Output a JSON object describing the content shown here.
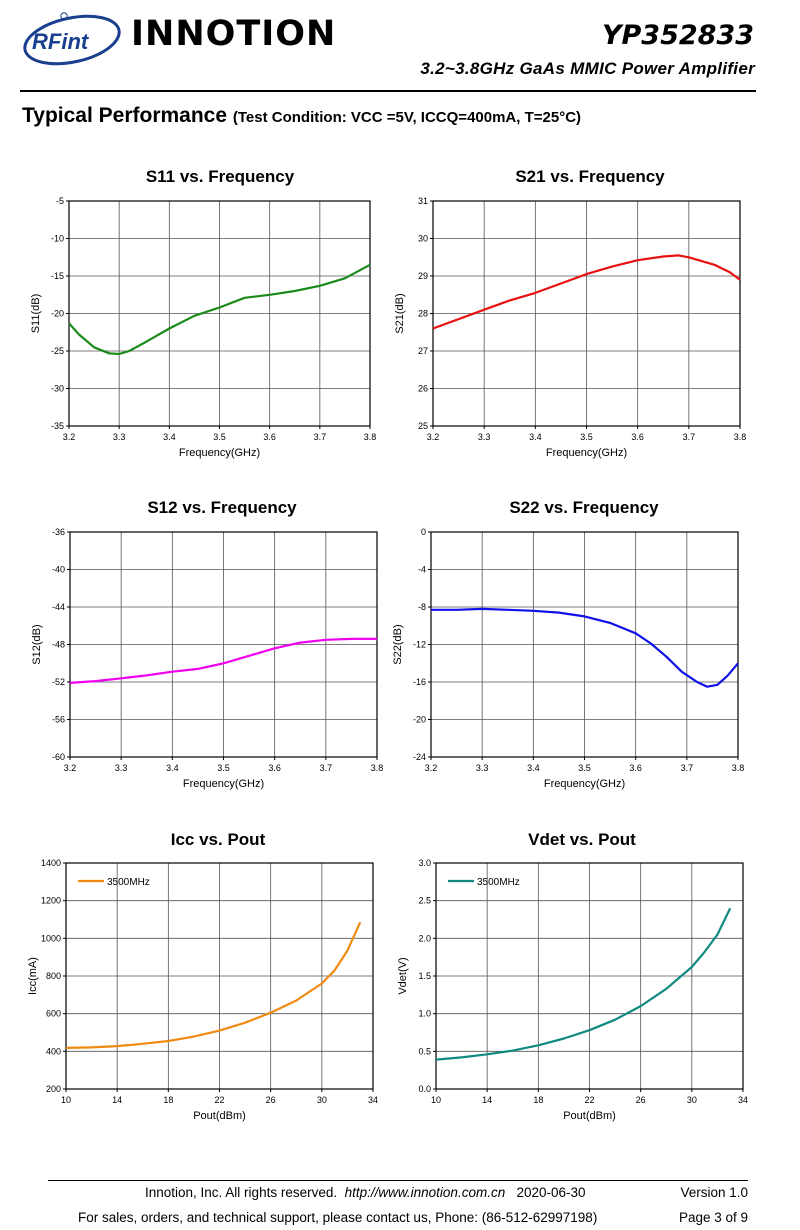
{
  "header": {
    "logo_text": "RFint",
    "company": "INNOTION",
    "part_number": "YP352833",
    "subtitle": "3.2~3.8GHz GaAs MMIC Power Amplifier"
  },
  "section": {
    "title": "Typical Performance",
    "condition": "(Test Condition: VCC =5V, ICCQ=400mA, T=25°C)"
  },
  "colors": {
    "s11": "#1a8a1a",
    "s21": "#e81010",
    "s12": "#f000f0",
    "s22": "#1010e8",
    "icc": "#f08a10",
    "vdet": "#108a80"
  },
  "chart_data": [
    {
      "type": "line",
      "title": "S11 vs. Frequency",
      "xlabel": "Frequency(GHz)",
      "ylabel": "S11(dB)",
      "xlim": [
        3.2,
        3.8
      ],
      "ylim": [
        -35,
        -5
      ],
      "xticks": [
        "3.2",
        "3.3",
        "3.4",
        "3.5",
        "3.6",
        "3.7",
        "3.8"
      ],
      "yticks": [
        "-5",
        "-10",
        "-15",
        "-20",
        "-25",
        "-30",
        "-35"
      ],
      "x": [
        3.2,
        3.22,
        3.25,
        3.28,
        3.3,
        3.32,
        3.35,
        3.4,
        3.45,
        3.5,
        3.55,
        3.6,
        3.65,
        3.7,
        3.75,
        3.8
      ],
      "y": [
        -21.3,
        -22.8,
        -24.5,
        -25.3,
        -25.4,
        -25.0,
        -23.9,
        -22.0,
        -20.3,
        -19.2,
        -17.9,
        -17.5,
        -17.0,
        -16.3,
        -15.3,
        -13.5
      ]
    },
    {
      "type": "line",
      "title": "S21 vs. Frequency",
      "xlabel": "Frequency(GHz)",
      "ylabel": "S21(dB)",
      "xlim": [
        3.2,
        3.8
      ],
      "ylim": [
        25,
        31
      ],
      "xticks": [
        "3.2",
        "3.3",
        "3.4",
        "3.5",
        "3.6",
        "3.7",
        "3.8"
      ],
      "yticks": [
        "31",
        "30",
        "29",
        "28",
        "27",
        "26",
        "25"
      ],
      "x": [
        3.2,
        3.25,
        3.3,
        3.35,
        3.4,
        3.45,
        3.5,
        3.55,
        3.6,
        3.65,
        3.68,
        3.7,
        3.75,
        3.78,
        3.8
      ],
      "y": [
        27.6,
        27.85,
        28.1,
        28.35,
        28.55,
        28.8,
        29.05,
        29.25,
        29.42,
        29.52,
        29.55,
        29.5,
        29.3,
        29.1,
        28.9
      ]
    },
    {
      "type": "line",
      "title": "S12 vs. Frequency",
      "xlabel": "Frequency(GHz)",
      "ylabel": "S12(dB)",
      "xlim": [
        3.2,
        3.8
      ],
      "ylim": [
        -60,
        -36
      ],
      "xticks": [
        "3.2",
        "3.3",
        "3.4",
        "3.5",
        "3.6",
        "3.7",
        "3.8"
      ],
      "yticks": [
        "-36",
        "-40",
        "-44",
        "-48",
        "-52",
        "-56",
        "-60"
      ],
      "x": [
        3.2,
        3.25,
        3.3,
        3.35,
        3.4,
        3.45,
        3.5,
        3.55,
        3.6,
        3.65,
        3.7,
        3.75,
        3.8
      ],
      "y": [
        -52.1,
        -51.9,
        -51.6,
        -51.3,
        -50.9,
        -50.6,
        -50.0,
        -49.2,
        -48.4,
        -47.8,
        -47.5,
        -47.4,
        -47.4
      ]
    },
    {
      "type": "line",
      "title": "S22 vs. Frequency",
      "xlabel": "Frequency(GHz)",
      "ylabel": "S22(dB)",
      "xlim": [
        3.2,
        3.8
      ],
      "ylim": [
        -24,
        0
      ],
      "xticks": [
        "3.2",
        "3.3",
        "3.4",
        "3.5",
        "3.6",
        "3.7",
        "3.8"
      ],
      "yticks": [
        "0",
        "-4",
        "-8",
        "-12",
        "-16",
        "-20",
        "-24"
      ],
      "x": [
        3.2,
        3.25,
        3.3,
        3.35,
        3.4,
        3.45,
        3.5,
        3.55,
        3.6,
        3.63,
        3.66,
        3.69,
        3.72,
        3.74,
        3.76,
        3.78,
        3.8
      ],
      "y": [
        -8.3,
        -8.3,
        -8.2,
        -8.3,
        -8.4,
        -8.6,
        -9.0,
        -9.7,
        -10.8,
        -11.9,
        -13.3,
        -14.9,
        -16.0,
        -16.5,
        -16.3,
        -15.3,
        -14.0
      ]
    },
    {
      "type": "line",
      "title": "Icc vs. Pout",
      "xlabel": "Pout(dBm)",
      "ylabel": "Icc(mA)",
      "xlim": [
        10,
        34
      ],
      "ylim": [
        200,
        1400
      ],
      "xticks": [
        "10",
        "14",
        "18",
        "22",
        "26",
        "30",
        "34"
      ],
      "yticks": [
        "1400",
        "1200",
        "1000",
        "800",
        "600",
        "400",
        "200"
      ],
      "legend": "top-left",
      "series": [
        {
          "name": "3500MHz",
          "x": [
            10,
            12,
            14,
            16,
            18,
            20,
            22,
            24,
            26,
            28,
            30,
            31,
            32,
            33
          ],
          "y": [
            418,
            421,
            428,
            440,
            455,
            478,
            510,
            552,
            605,
            670,
            760,
            830,
            935,
            1085
          ]
        }
      ]
    },
    {
      "type": "line",
      "title": "Vdet vs. Pout",
      "xlabel": "Pout(dBm)",
      "ylabel": "Vdet(V)",
      "xlim": [
        10,
        34
      ],
      "ylim": [
        0.0,
        3.0
      ],
      "xticks": [
        "10",
        "14",
        "18",
        "22",
        "26",
        "30",
        "34"
      ],
      "yticks": [
        "3.0",
        "2.5",
        "2.0",
        "1.5",
        "1.0",
        "0.5",
        "0.0"
      ],
      "legend": "top-left",
      "series": [
        {
          "name": "3500MHz",
          "x": [
            10,
            12,
            14,
            16,
            18,
            20,
            22,
            24,
            26,
            28,
            30,
            31,
            32,
            33
          ],
          "y": [
            0.39,
            0.42,
            0.46,
            0.51,
            0.58,
            0.67,
            0.78,
            0.92,
            1.1,
            1.33,
            1.62,
            1.82,
            2.05,
            2.4
          ]
        }
      ]
    }
  ],
  "footer": {
    "line1_company": "Innotion, Inc. All rights reserved.",
    "line1_url": "http://www.innotion.com.cn",
    "line1_date": "2020-06-30",
    "version": "Version 1.0",
    "line2_contact": "For sales, orders, and technical support, please contact us, Phone: (86-512-62997198)",
    "page": "Page 3 of 9"
  }
}
